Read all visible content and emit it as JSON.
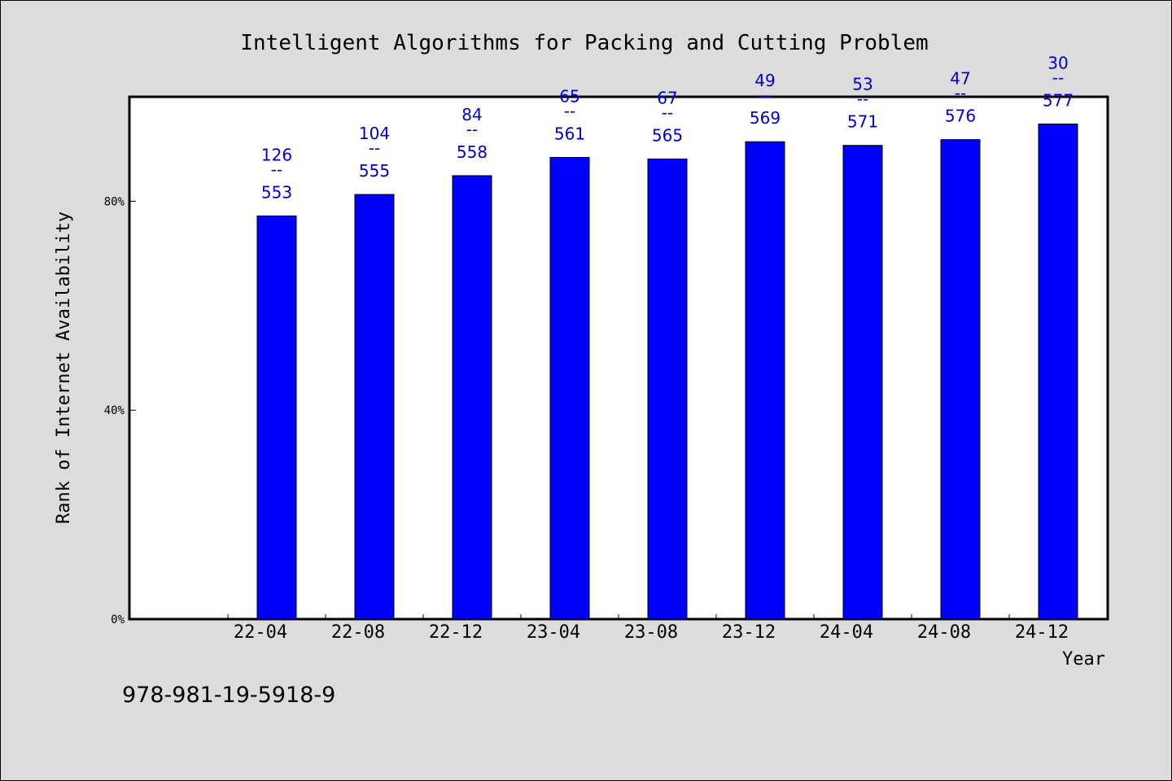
{
  "chart_data": {
    "type": "bar",
    "title": "Intelligent Algorithms for Packing and Cutting Problem",
    "xlabel": "Year",
    "ylabel": "Rank of Internet Availability",
    "ylim": [
      0,
      100
    ],
    "yticks": [
      {
        "value": 0,
        "label": "0%"
      },
      {
        "value": 40,
        "label": "40%"
      },
      {
        "value": 80,
        "label": "80%"
      }
    ],
    "categories": [
      "22-04",
      "22-08",
      "22-12",
      "23-04",
      "23-08",
      "23-12",
      "24-04",
      "24-08",
      "24-12"
    ],
    "values": [
      77.2,
      81.3,
      84.9,
      88.4,
      88.1,
      91.4,
      90.7,
      91.8,
      94.8
    ],
    "data_labels": [
      {
        "top": "126",
        "sep": "--",
        "bottom": "553"
      },
      {
        "top": "104",
        "sep": "--",
        "bottom": "555"
      },
      {
        "top": "84",
        "sep": "--",
        "bottom": "558"
      },
      {
        "top": "65",
        "sep": "--",
        "bottom": "561"
      },
      {
        "top": "67",
        "sep": "--",
        "bottom": "565"
      },
      {
        "top": "49",
        "sep": "--",
        "bottom": "569"
      },
      {
        "top": "53",
        "sep": "--",
        "bottom": "571"
      },
      {
        "top": "47",
        "sep": "--",
        "bottom": "576"
      },
      {
        "top": "30",
        "sep": "--",
        "bottom": "577"
      }
    ],
    "bar_color": "#0000ff",
    "label_color": "#0000cc",
    "grid": false
  },
  "footer": {
    "isbn": "978-981-19-5918-9"
  }
}
